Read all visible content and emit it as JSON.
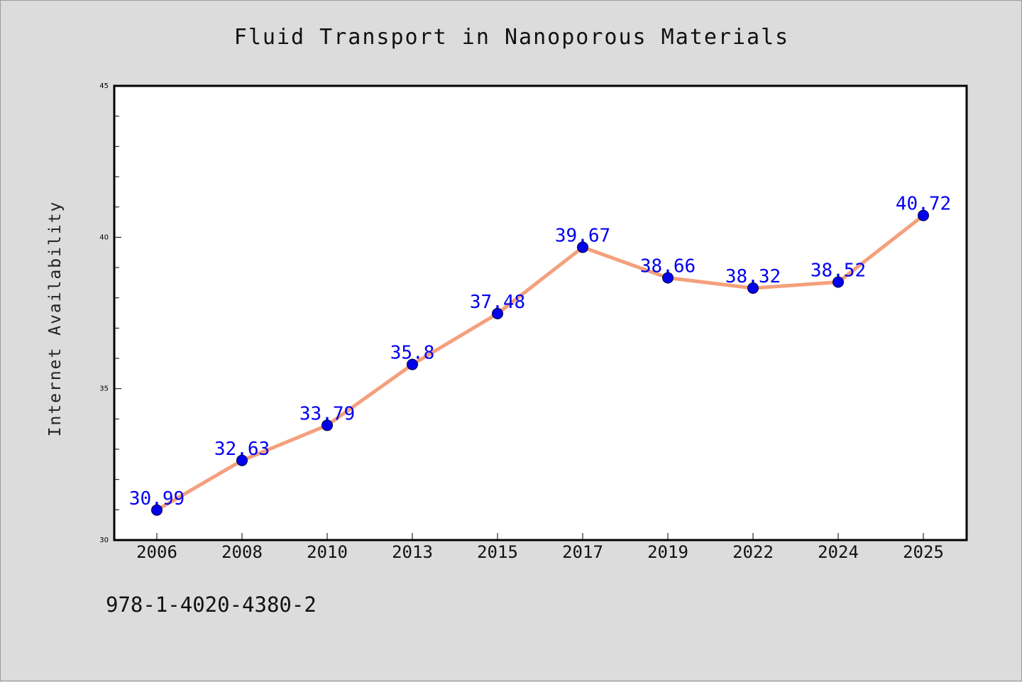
{
  "chart_data": {
    "type": "line",
    "title": "Fluid Transport in Nanoporous Materials",
    "xlabel": "",
    "ylabel": "Internet Availability",
    "categories": [
      "2006",
      "2008",
      "2010",
      "2013",
      "2015",
      "2017",
      "2019",
      "2022",
      "2024",
      "2025"
    ],
    "series": [
      {
        "values": [
          30.99,
          32.63,
          33.79,
          35.8,
          37.48,
          39.67,
          38.66,
          38.32,
          38.52,
          40.72
        ],
        "labels": [
          "30.99",
          "32.63",
          "33.79",
          "35.8",
          "37.48",
          "39.67",
          "38.66",
          "38.32",
          "38.52",
          "40.72"
        ],
        "line_color": "#f4a07c",
        "marker_color": "#0000ee"
      }
    ],
    "ylim": [
      30,
      45
    ],
    "yticks": [
      "30",
      "35",
      "40",
      "45"
    ],
    "grid": false,
    "legend": "none",
    "label_color": "#0000ee"
  },
  "annotation": {
    "text": "978-1-4020-4380-2"
  }
}
